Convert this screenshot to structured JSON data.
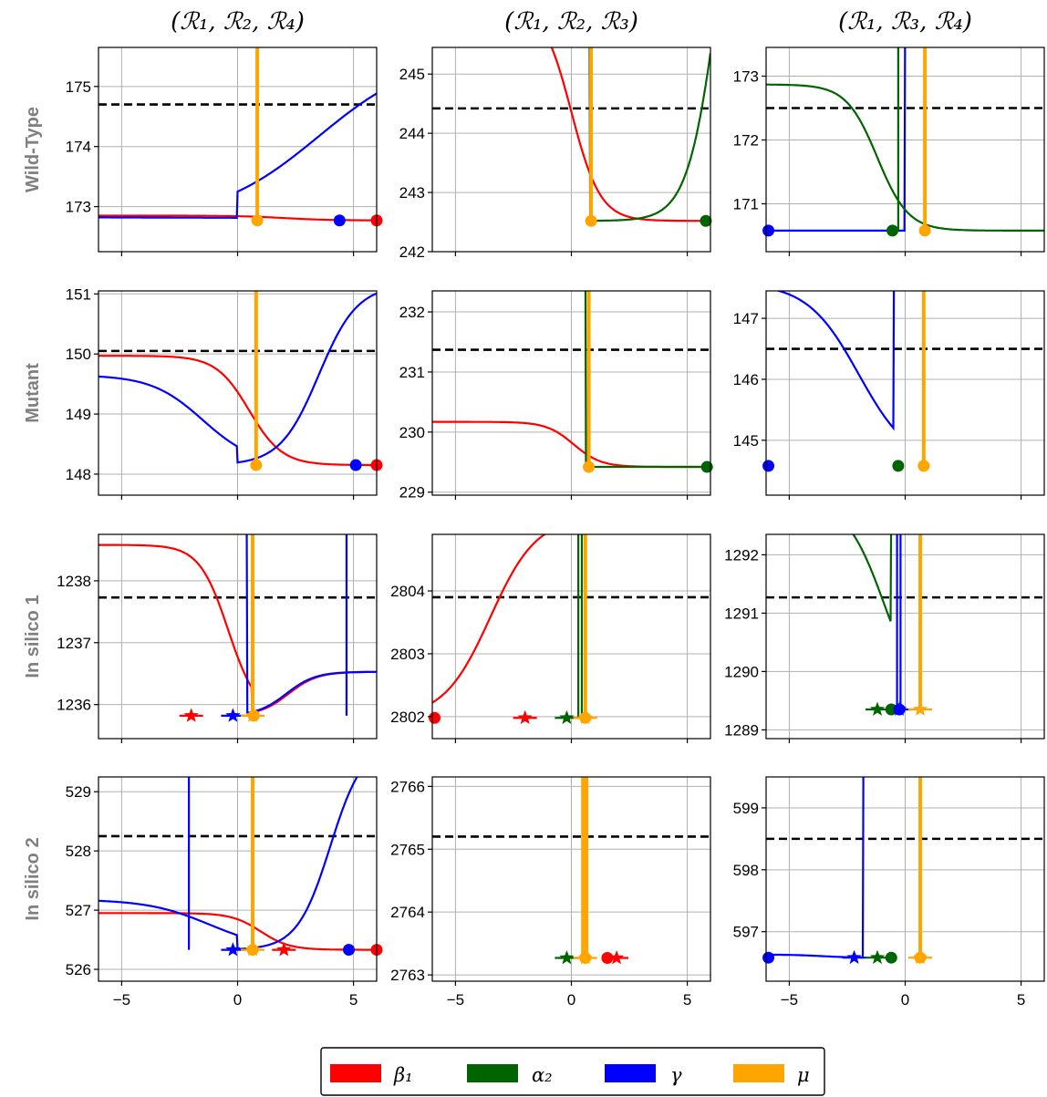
{
  "chart_data": {
    "type": "line",
    "column_titles": [
      "(ℛ₁, ℛ₂, ℛ₄)",
      "(ℛ₁, ℛ₂, ℛ₃)",
      "(ℛ₁, ℛ₃, ℛ₄)"
    ],
    "row_labels": [
      "Wild-Type",
      "Mutant",
      "In silico 1",
      "In silico 2"
    ],
    "xlim": [
      -6,
      6
    ],
    "x_ticks": [
      -5,
      0,
      5
    ],
    "grid": true,
    "legend": {
      "placement": "bottom-center",
      "entries": [
        {
          "label": "β₁",
          "color": "#ff0000"
        },
        {
          "label": "α₂",
          "color": "#006400"
        },
        {
          "label": "γ",
          "color": "#0000ff"
        },
        {
          "label": "μ",
          "color": "#ffa500"
        }
      ]
    },
    "series_colors": {
      "beta1": "#ff0000",
      "alpha2": "#006400",
      "gamma": "#0000ff",
      "mu": "#ffa500"
    },
    "panels": [
      [
        {
          "ylim": [
            172.25,
            175.65
          ],
          "yticks": [
            173,
            174,
            175
          ],
          "threshold": 174.7,
          "curves": [
            {
              "s": "beta1",
              "kind": "sig",
              "a": 172.85,
              "b": 172.77,
              "c": 2,
              "k": 1
            },
            {
              "s": "gamma",
              "kind": "bowl",
              "base": 172.77,
              "c": 0,
              "L": 0.06,
              "R": 0.45,
              "zl": 3,
              "zr": 3.5,
              "hl": 0.08,
              "hr": 2.8
            },
            {
              "s": "mu",
              "kind": "vline",
              "x": 0.85
            }
          ],
          "markers": [
            {
              "s": "beta1",
              "x": 6,
              "y": 172.77
            },
            {
              "s": "gamma",
              "x": 4.4,
              "y": 172.77
            },
            {
              "s": "mu",
              "x": 0.85,
              "y": 172.77
            }
          ]
        },
        {
          "ylim": [
            242.0,
            245.45
          ],
          "yticks": [
            242,
            243,
            244,
            245
          ],
          "threshold": 244.42,
          "curves": [
            {
              "s": "beta1",
              "kind": "sig",
              "a": 246.2,
              "b": 242.52,
              "c": 0,
              "k": 1.6
            },
            {
              "s": "alpha2",
              "kind": "bowl",
              "base": 242.52,
              "c": 0.8,
              "L": 1.5,
              "R": 1.5,
              "zl": 0,
              "zr": 5.6,
              "hl": 9,
              "hr": 8
            },
            {
              "s": "mu",
              "kind": "vline",
              "x": 0.85
            }
          ],
          "markers": [
            {
              "s": "alpha2",
              "x": 5.8,
              "y": 242.52
            },
            {
              "s": "mu",
              "x": 0.85,
              "y": 242.52
            }
          ]
        },
        {
          "ylim": [
            170.25,
            173.45
          ],
          "yticks": [
            171,
            172,
            173
          ],
          "threshold": 172.5,
          "curves": [
            {
              "s": "gamma",
              "kind": "bowl",
              "base": 170.58,
              "c": 0,
              "L": 0.9,
              "R": 0.9,
              "zl": -1,
              "zr": -2.2,
              "hl": 0,
              "hr": 6
            },
            {
              "s": "alpha2",
              "kind": "sig",
              "a": 172.87,
              "b": 170.58,
              "c": -1.2,
              "k": 1.5
            },
            {
              "s": "alpha2",
              "kind": "vline",
              "x": -0.3
            },
            {
              "s": "mu",
              "kind": "vline",
              "x": 0.85
            }
          ],
          "markers": [
            {
              "s": "gamma",
              "x": -5.9,
              "y": 170.58
            },
            {
              "s": "alpha2",
              "x": -0.55,
              "y": 170.58
            },
            {
              "s": "mu",
              "x": 0.85,
              "y": 170.58
            }
          ]
        }
      ],
      [
        {
          "ylim": [
            147.65,
            151.05
          ],
          "yticks": [
            148,
            149,
            150,
            151
          ],
          "threshold": 150.05,
          "curves": [
            {
              "s": "beta1",
              "kind": "sig",
              "a": 149.97,
              "b": 148.15,
              "c": 0.5,
              "k": 1.4
            },
            {
              "s": "gamma",
              "kind": "bowl",
              "base": 148.15,
              "c": 0,
              "L": 0.9,
              "R": 1.2,
              "zl": -1.5,
              "zr": 3.5,
              "hl": 1.5,
              "hr": 3.0
            },
            {
              "s": "mu",
              "kind": "vline",
              "x": 0.8
            }
          ],
          "markers": [
            {
              "s": "beta1",
              "x": 6,
              "y": 148.15
            },
            {
              "s": "gamma",
              "x": 5.1,
              "y": 148.15
            },
            {
              "s": "mu",
              "x": 0.8,
              "y": 148.15
            }
          ]
        },
        {
          "ylim": [
            228.95,
            232.35
          ],
          "yticks": [
            229,
            230,
            231,
            232
          ],
          "threshold": 231.37,
          "curves": [
            {
              "s": "beta1",
              "kind": "sig",
              "a": 230.17,
              "b": 229.42,
              "c": 0.1,
              "k": 1.7
            },
            {
              "s": "alpha2",
              "kind": "bowl",
              "base": 229.42,
              "c": 0.6,
              "L": 2.5,
              "R": 1.5,
              "zl": 0,
              "zr": 5.5,
              "hl": 9,
              "hr": 0
            },
            {
              "s": "mu",
              "kind": "vline",
              "x": 0.75
            }
          ],
          "markers": [
            {
              "s": "alpha2",
              "x": 5.85,
              "y": 229.42
            },
            {
              "s": "mu",
              "x": 0.75,
              "y": 229.42
            }
          ]
        },
        {
          "ylim": [
            144.1,
            147.45
          ],
          "yticks": [
            145,
            146,
            147
          ],
          "threshold": 146.5,
          "curves": [
            {
              "s": "gamma",
              "kind": "bowl",
              "base": 144.58,
              "c": -0.5,
              "L": 0.9,
              "R": 2.0,
              "zl": -1.5,
              "zr": 0,
              "hl": 3.0,
              "hr": 9
            },
            {
              "s": "alpha2",
              "kind": "bowl",
              "base": 144.58,
              "c": -0.3,
              "L": 3.0,
              "R": 3.0,
              "zl": 0,
              "zr": 0,
              "hl": 9,
              "hr": 9
            },
            {
              "s": "mu",
              "kind": "vline",
              "x": 0.8
            }
          ],
          "markers": [
            {
              "s": "gamma",
              "x": -5.9,
              "y": 144.58
            },
            {
              "s": "alpha2",
              "x": -0.3,
              "y": 144.58
            },
            {
              "s": "mu",
              "x": 0.8,
              "y": 144.58
            }
          ]
        }
      ],
      [
        {
          "ylim": [
            1235.45,
            1238.75
          ],
          "yticks": [
            1236,
            1237,
            1238
          ],
          "threshold": 1237.73,
          "curves": [
            {
              "s": "beta1",
              "kind": "bowl",
              "base": 1235.82,
              "c": 0.6,
              "L": 1.6,
              "R": 1.6,
              "zl": -1.0,
              "zr": 1.6,
              "hl": 2.76,
              "hr": 0.71
            },
            {
              "s": "gamma",
              "kind": "bowl",
              "base": 1235.82,
              "c": 0.4,
              "L": 3.0,
              "R": 1.6,
              "zl": 0,
              "zr": 1.7,
              "hl": 9,
              "hr": 0.71
            },
            {
              "s": "gamma",
              "kind": "vline",
              "x": 4.7
            },
            {
              "s": "mu",
              "kind": "vline",
              "x": 0.65
            }
          ],
          "markers": [
            {
              "s": "mu",
              "x": 0.7,
              "y": 1235.82
            }
          ],
          "stars": [
            {
              "s": "beta1",
              "x": -2.0,
              "y": 1235.82
            },
            {
              "s": "gamma",
              "x": -0.2,
              "y": 1235.82
            },
            {
              "s": "mu",
              "x": 0.65,
              "y": 1235.82
            }
          ]
        },
        {
          "ylim": [
            2801.65,
            2804.9
          ],
          "yticks": [
            2802,
            2803,
            2804
          ],
          "threshold": 2803.9,
          "curves": [
            {
              "s": "beta1",
              "kind": "bowl",
              "base": 2801.98,
              "c": -6,
              "L": 1,
              "R": 1.0,
              "zl": 0,
              "zr": 2.5,
              "hl": 0,
              "hr": 3.2
            },
            {
              "s": "alpha2",
              "kind": "vline",
              "x": 0.3
            },
            {
              "s": "alpha2",
              "kind": "vline",
              "x": 0.45
            },
            {
              "s": "mu",
              "kind": "vline",
              "x": 0.6
            }
          ],
          "markers": [
            {
              "s": "beta1",
              "x": -5.9,
              "y": 2801.98
            },
            {
              "s": "mu",
              "x": 0.6,
              "y": 2801.98
            }
          ],
          "stars": [
            {
              "s": "beta1",
              "x": -2.0,
              "y": 2801.98
            },
            {
              "s": "alpha2",
              "x": -0.2,
              "y": 2801.98
            },
            {
              "s": "mu",
              "x": 0.6,
              "y": 2801.98
            }
          ]
        },
        {
          "ylim": [
            1288.85,
            1292.35
          ],
          "yticks": [
            1289,
            1290,
            1291,
            1292
          ],
          "threshold": 1291.27,
          "curves": [
            {
              "s": "alpha2",
              "kind": "bowl",
              "base": 1289.35,
              "c": -0.6,
              "L": 1.2,
              "R": 3.0,
              "zl": -0.3,
              "zr": 0,
              "hl": 3.6,
              "hr": 9
            },
            {
              "s": "gamma",
              "kind": "vline",
              "x": -0.35
            },
            {
              "s": "gamma",
              "kind": "vline",
              "x": -0.2
            },
            {
              "s": "mu",
              "kind": "vline",
              "x": 0.65
            }
          ],
          "markers": [
            {
              "s": "alpha2",
              "x": -0.6,
              "y": 1289.35
            },
            {
              "s": "gamma",
              "x": -0.25,
              "y": 1289.35
            }
          ],
          "stars": [
            {
              "s": "alpha2",
              "x": -1.2,
              "y": 1289.35
            },
            {
              "s": "gamma",
              "x": -0.25,
              "y": 1289.35
            },
            {
              "s": "mu",
              "x": 0.65,
              "y": 1289.35
            }
          ]
        }
      ],
      [
        {
          "ylim": [
            525.8,
            529.25
          ],
          "yticks": [
            526,
            527,
            528,
            529
          ],
          "threshold": 528.25,
          "curves": [
            {
              "s": "beta1",
              "kind": "sig",
              "a": 526.95,
              "b": 526.33,
              "c": 1.0,
              "k": 1.6
            },
            {
              "s": "gamma",
              "kind": "bowl",
              "base": 526.33,
              "c": 0,
              "L": 0.75,
              "R": 1.4,
              "zl": -1.2,
              "zr": 4.0,
              "hl": 0.85,
              "hr": 3.5
            },
            {
              "s": "gamma",
              "kind": "vline",
              "x": -2.1
            },
            {
              "s": "mu",
              "kind": "vline",
              "x": 0.65
            }
          ],
          "markers": [
            {
              "s": "beta1",
              "x": 6,
              "y": 526.33
            },
            {
              "s": "gamma",
              "x": 4.8,
              "y": 526.33
            },
            {
              "s": "mu",
              "x": 0.65,
              "y": 526.33
            }
          ],
          "stars": [
            {
              "s": "gamma",
              "x": -0.2,
              "y": 526.33
            },
            {
              "s": "mu",
              "x": 0.65,
              "y": 526.33
            },
            {
              "s": "beta1",
              "x": 2.0,
              "y": 526.33
            }
          ]
        },
        {
          "ylim": [
            2762.9,
            2766.15
          ],
          "yticks": [
            2763,
            2764,
            2765,
            2766
          ],
          "threshold": 2765.2,
          "curves": [
            {
              "s": "mu",
              "kind": "vline",
              "x": 0.5
            },
            {
              "s": "alpha2",
              "kind": "bowl",
              "base": 2763.27,
              "c": 0.8,
              "L": 3.2,
              "R": 3.2,
              "zl": 0,
              "zr": 0,
              "hl": 9,
              "hr": 9
            },
            {
              "s": "beta1",
              "kind": "bowl",
              "base": 2763.27,
              "c": 1.6,
              "L": 3.0,
              "R": 3.0,
              "zl": 0,
              "zr": 0,
              "hl": 9,
              "hr": 9
            },
            {
              "s": "mu",
              "kind": "vline",
              "x": 0.65
            }
          ],
          "markers": [
            {
              "s": "beta1",
              "x": 1.55,
              "y": 2763.27
            },
            {
              "s": "mu",
              "x": 0.6,
              "y": 2763.27
            }
          ],
          "stars": [
            {
              "s": "alpha2",
              "x": -0.2,
              "y": 2763.27
            },
            {
              "s": "beta1",
              "x": 1.95,
              "y": 2763.27
            },
            {
              "s": "mu",
              "x": 0.6,
              "y": 2763.27
            }
          ]
        },
        {
          "ylim": [
            596.2,
            599.5
          ],
          "yticks": [
            597,
            598,
            599
          ],
          "threshold": 598.5,
          "curves": [
            {
              "s": "gamma",
              "kind": "bowl",
              "base": 596.58,
              "c": -1.8,
              "L": 1.5,
              "R": 2.2,
              "zl": -1.8,
              "zr": 0,
              "hl": 0.05,
              "hr": 9
            },
            {
              "s": "alpha2",
              "kind": "bowl",
              "base": 596.58,
              "c": -0.6,
              "L": 3.0,
              "R": 3.0,
              "zl": 0,
              "zr": 0,
              "hl": 9,
              "hr": 9
            },
            {
              "s": "mu",
              "kind": "vline",
              "x": 0.65
            }
          ],
          "markers": [
            {
              "s": "gamma",
              "x": -5.9,
              "y": 596.58
            },
            {
              "s": "alpha2",
              "x": -0.6,
              "y": 596.58
            },
            {
              "s": "mu",
              "x": 0.65,
              "y": 596.58
            }
          ],
          "stars": [
            {
              "s": "gamma",
              "x": -2.2,
              "y": 596.58
            },
            {
              "s": "alpha2",
              "x": -1.2,
              "y": 596.58
            },
            {
              "s": "mu",
              "x": 0.65,
              "y": 596.58
            }
          ]
        }
      ]
    ]
  }
}
